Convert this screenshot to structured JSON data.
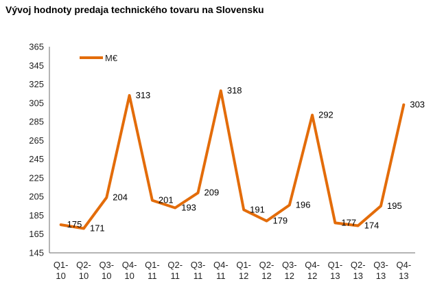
{
  "colors": {
    "background": "#ffffff",
    "axis_line": "#6a6a6a",
    "tick_text": "#1f1f1f",
    "series_orange": "#e36c0a",
    "title_text": "#000000"
  },
  "chart_data": {
    "type": "line",
    "title": "Vývoj hodnoty predaja technického tovaru na Slovensku",
    "categories": [
      "Q1-10",
      "Q2-10",
      "Q3-10",
      "Q4-10",
      "Q1-11",
      "Q2-11",
      "Q3-11",
      "Q4-11",
      "Q1-12",
      "Q2-12",
      "Q3-12",
      "Q4-12",
      "Q1-13",
      "Q2-13",
      "Q3-13",
      "Q4-13"
    ],
    "series": [
      {
        "name": "M€",
        "color": "#e36c0a",
        "values": [
          175,
          171,
          204,
          313,
          201,
          193,
          209,
          318,
          191,
          179,
          196,
          292,
          177,
          174,
          195,
          303
        ]
      }
    ],
    "xlabel": "",
    "ylabel": "",
    "ylim": [
      145,
      365
    ],
    "ytick_step": 20,
    "yticks": [
      365,
      345,
      325,
      305,
      285,
      265,
      245,
      225,
      205,
      185,
      165,
      145
    ],
    "grid": false,
    "legend_position": "top-left-inside",
    "data_labels": "right",
    "line_width": 4
  }
}
